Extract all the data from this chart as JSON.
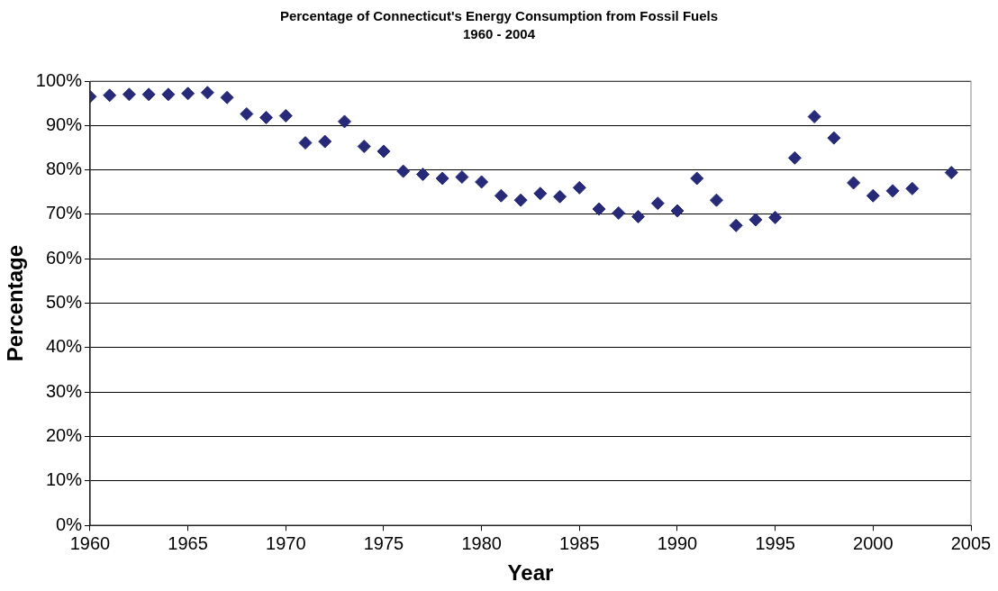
{
  "chart_data": {
    "type": "scatter",
    "title": "Percentage of Connecticut's Energy Consumption from Fossil Fuels",
    "subtitle": "1960 - 2004",
    "xlabel": "Year",
    "ylabel": "Percentage",
    "x": [
      1960,
      1961,
      1962,
      1963,
      1964,
      1965,
      1966,
      1967,
      1968,
      1969,
      1970,
      1971,
      1972,
      1973,
      1974,
      1975,
      1976,
      1977,
      1978,
      1979,
      1980,
      1981,
      1982,
      1983,
      1984,
      1985,
      1986,
      1987,
      1988,
      1989,
      1990,
      1991,
      1992,
      1993,
      1994,
      1995,
      1996,
      1997,
      1998,
      1999,
      2000,
      2001,
      2002,
      2004
    ],
    "series": [
      {
        "color": "#262a78",
        "values": [
          96.5,
          96.8,
          97.0,
          97.0,
          97.0,
          97.2,
          97.4,
          96.3,
          92.6,
          91.8,
          92.2,
          86.1,
          86.4,
          90.9,
          85.3,
          84.2,
          79.7,
          79.0,
          78.1,
          78.4,
          77.3,
          74.2,
          73.2,
          74.7,
          74.0,
          76.0,
          71.2,
          70.3,
          69.5,
          72.5,
          70.8,
          78.1,
          73.2,
          67.5,
          68.8,
          69.3,
          82.7,
          92.0,
          87.2,
          77.1,
          74.2,
          75.3,
          75.8,
          79.4
        ]
      }
    ],
    "xlim": [
      1960,
      2005
    ],
    "xticks": [
      1960,
      1965,
      1970,
      1975,
      1980,
      1985,
      1990,
      1995,
      2000,
      2005
    ],
    "ylim": [
      0,
      100
    ],
    "yticks": [
      {
        "value": 0,
        "label": "0%"
      },
      {
        "value": 10,
        "label": "10%"
      },
      {
        "value": 20,
        "label": "20%"
      },
      {
        "value": 30,
        "label": "30%"
      },
      {
        "value": 40,
        "label": "40%"
      },
      {
        "value": 50,
        "label": "50%"
      },
      {
        "value": 60,
        "label": "60%"
      },
      {
        "value": 70,
        "label": "70%"
      },
      {
        "value": 80,
        "label": "80%"
      },
      {
        "value": 90,
        "label": "90%"
      },
      {
        "value": 100,
        "label": "100%"
      }
    ],
    "grid": "y",
    "legend": false,
    "marker": "diamond"
  }
}
